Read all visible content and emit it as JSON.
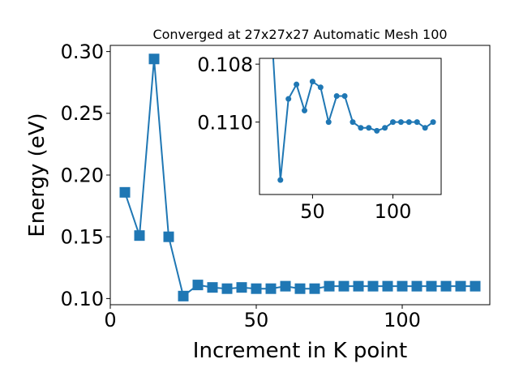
{
  "chart_data": [
    {
      "type": "line",
      "title": "Converged at 27x27x27 Automatic Mesh 100",
      "xlabel": "Increment in K point",
      "ylabel": "Energy (eV)",
      "xlim": [
        0,
        130
      ],
      "ylim": [
        0.095,
        0.305
      ],
      "xticks": [
        "0",
        "50",
        "100"
      ],
      "yticks": [
        "0.10",
        "0.15",
        "0.20",
        "0.25",
        "0.30"
      ],
      "color": "#1f77b4",
      "marker": "square",
      "series": [
        {
          "x": [
            5,
            10,
            15,
            20,
            25,
            30,
            35,
            40,
            45,
            50,
            55,
            60,
            65,
            70,
            75,
            80,
            85,
            90,
            95,
            100,
            105,
            110,
            115,
            120,
            125
          ],
          "y": [
            0.186,
            0.151,
            0.294,
            0.15,
            0.102,
            0.111,
            0.109,
            0.108,
            0.109,
            0.108,
            0.108,
            0.11,
            0.108,
            0.108,
            0.11,
            0.11,
            0.11,
            0.11,
            0.11,
            0.11,
            0.11,
            0.11,
            0.11,
            0.11,
            0.11
          ]
        }
      ]
    },
    {
      "type": "line",
      "title": "",
      "xlim": [
        17,
        130
      ],
      "ylim": [
        0.1125,
        0.1078
      ],
      "inverted_y": true,
      "xticks": [
        "50",
        "100"
      ],
      "yticks": [
        "0.108",
        "0.110"
      ],
      "color": "#1f77b4",
      "marker": "circle",
      "series": [
        {
          "x": [
            25,
            30,
            35,
            40,
            45,
            50,
            55,
            60,
            65,
            70,
            75,
            80,
            85,
            90,
            95,
            100,
            105,
            110,
            115,
            120,
            125
          ],
          "y": [
            0.1073,
            0.112,
            0.1092,
            0.1087,
            0.1096,
            0.1086,
            0.1088,
            0.11,
            0.1091,
            0.1091,
            0.11,
            0.1102,
            0.1102,
            0.1103,
            0.1102,
            0.11,
            0.11,
            0.11,
            0.11,
            0.1102,
            0.11
          ]
        }
      ]
    }
  ]
}
